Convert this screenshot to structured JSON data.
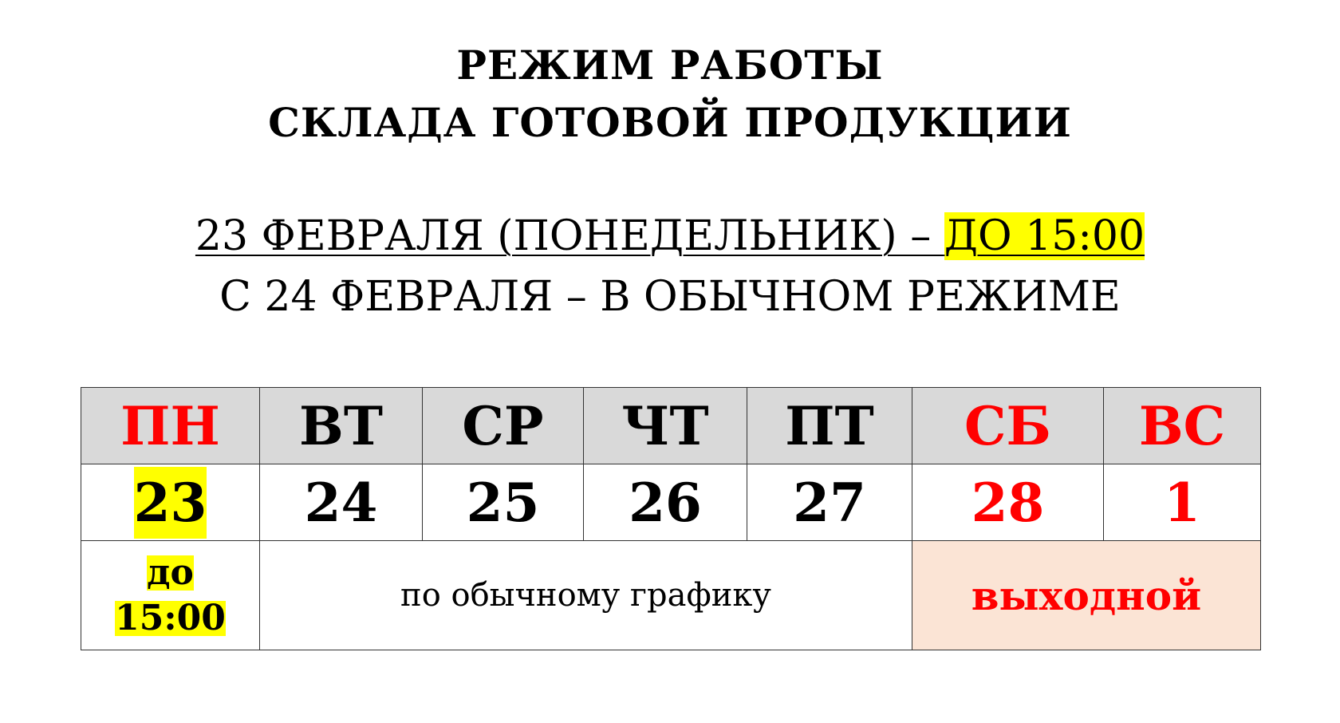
{
  "title": {
    "line1": "РЕЖИМ РАБОТЫ",
    "line2": "СКЛАДА ГОТОВОЙ ПРОДУКЦИИ"
  },
  "notice": {
    "holiday_prefix": "23 ФЕВРАЛЯ (ПОНЕДЕЛЬНИК) – ",
    "holiday_hours": "ДО 15:00",
    "regular": "С 24 ФЕВРАЛЯ – В ОБЫЧНОМ РЕЖИМЕ"
  },
  "schedule": {
    "days": [
      {
        "name": "ПН",
        "date": "23",
        "weekend": true
      },
      {
        "name": "ВТ",
        "date": "24",
        "weekend": false
      },
      {
        "name": "СР",
        "date": "25",
        "weekend": false
      },
      {
        "name": "ЧТ",
        "date": "26",
        "weekend": false
      },
      {
        "name": "ПТ",
        "date": "27",
        "weekend": false
      },
      {
        "name": "СБ",
        "date": "28",
        "weekend": true
      },
      {
        "name": "ВС",
        "date": "1",
        "weekend": true
      }
    ],
    "monday_until": "до",
    "monday_time": "15:00",
    "regular_schedule": "по обычному графику",
    "day_off": "выходной"
  },
  "colors": {
    "red": "#ff0000",
    "highlight": "#ffff00",
    "header_bg": "#d9d9d9",
    "day_off_bg": "#fbe4d5"
  }
}
